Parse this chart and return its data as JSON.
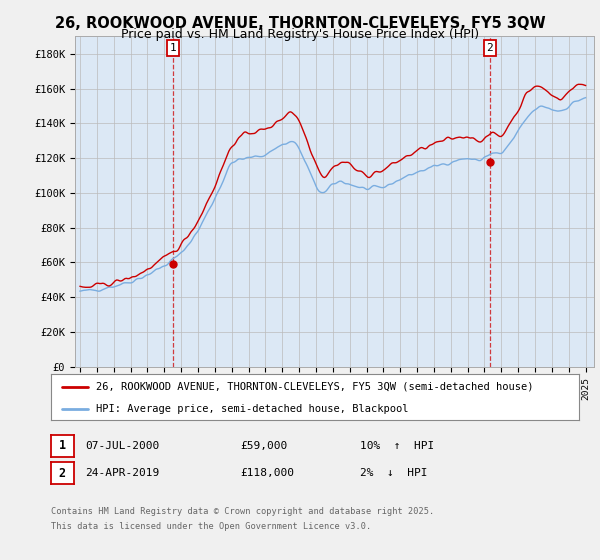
{
  "title": "26, ROOKWOOD AVENUE, THORNTON-CLEVELEYS, FY5 3QW",
  "subtitle": "Price paid vs. HM Land Registry's House Price Index (HPI)",
  "title_fontsize": 10.5,
  "subtitle_fontsize": 9,
  "ylim": [
    0,
    190000
  ],
  "yticks": [
    0,
    20000,
    40000,
    60000,
    80000,
    100000,
    120000,
    140000,
    160000,
    180000
  ],
  "ytick_labels": [
    "£0",
    "£20K",
    "£40K",
    "£60K",
    "£80K",
    "£100K",
    "£120K",
    "£140K",
    "£160K",
    "£180K"
  ],
  "xlim_start": 1994.7,
  "xlim_end": 2025.5,
  "bg_color": "#f0f0f0",
  "plot_bg_color": "#dce8f5",
  "grid_color": "#bbbbbb",
  "red_color": "#cc0000",
  "blue_color": "#7aade0",
  "sale1_year": 2000.52,
  "sale1_price": 59000,
  "sale2_year": 2019.32,
  "sale2_price": 118000,
  "legend_red": "26, ROOKWOOD AVENUE, THORNTON-CLEVELEYS, FY5 3QW (semi-detached house)",
  "legend_blue": "HPI: Average price, semi-detached house, Blackpool",
  "footnote1": "Contains HM Land Registry data © Crown copyright and database right 2025.",
  "footnote2": "This data is licensed under the Open Government Licence v3.0."
}
